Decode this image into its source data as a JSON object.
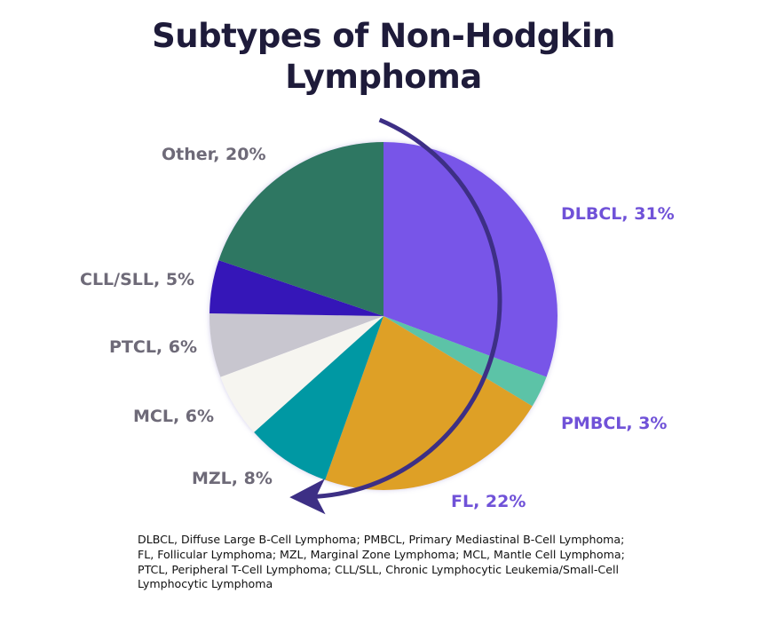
{
  "title_lines": [
    "Subtypes of Non-Hodgkin",
    "Lymphoma"
  ],
  "chart_data": {
    "type": "pie",
    "title": "Subtypes of Non-Hodgkin Lymphoma",
    "start_angle": "12 o'clock",
    "direction": "clockwise",
    "slices": [
      {
        "label": "DLBCL",
        "value": 31,
        "color": "#7855e8",
        "label_text": "DLBCL, 31%"
      },
      {
        "label": "PMBCL",
        "value": 3,
        "color": "#5bc3a7",
        "label_text": "PMBCL, 3%"
      },
      {
        "label": "FL",
        "value": 22,
        "color": "#dea027",
        "label_text": "FL, 22%"
      },
      {
        "label": "MZL",
        "value": 8,
        "color": "#0598a3",
        "label_text": "MZL, 8%"
      },
      {
        "label": "MCL",
        "value": 6,
        "color": "#f6f5f0",
        "label_text": "MCL, 6%"
      },
      {
        "label": "PTCL",
        "value": 6,
        "color": "#c8c6cf",
        "label_text": "PTCL, 6%"
      },
      {
        "label": "CLL/SLL",
        "value": 5,
        "color": "#3412b8",
        "label_text": "CLL/SLL, 5%"
      },
      {
        "label": "Other",
        "value": 20,
        "color": "#2d7762",
        "label_text": "Other, 20%"
      }
    ],
    "annotation": "Curved arrow clockwise around DLBCL, PMBCL, FL slices",
    "arrow_color": "#3d2f85",
    "label_colors": {
      "highlighted": "#7052d8",
      "default": "#6e6a78"
    }
  },
  "footnote": "DLBCL, Diffuse Large B-Cell Lymphoma; PMBCL, Primary Mediastinal B-Cell Lymphoma; FL, Follicular Lymphoma; MZL, Marginal Zone Lymphoma; MCL, Mantle Cell Lymphoma; PTCL, Peripheral T-Cell Lymphoma; CLL/SLL, Chronic Lymphocytic Leukemia/Small-Cell Lymphocytic Lymphoma"
}
